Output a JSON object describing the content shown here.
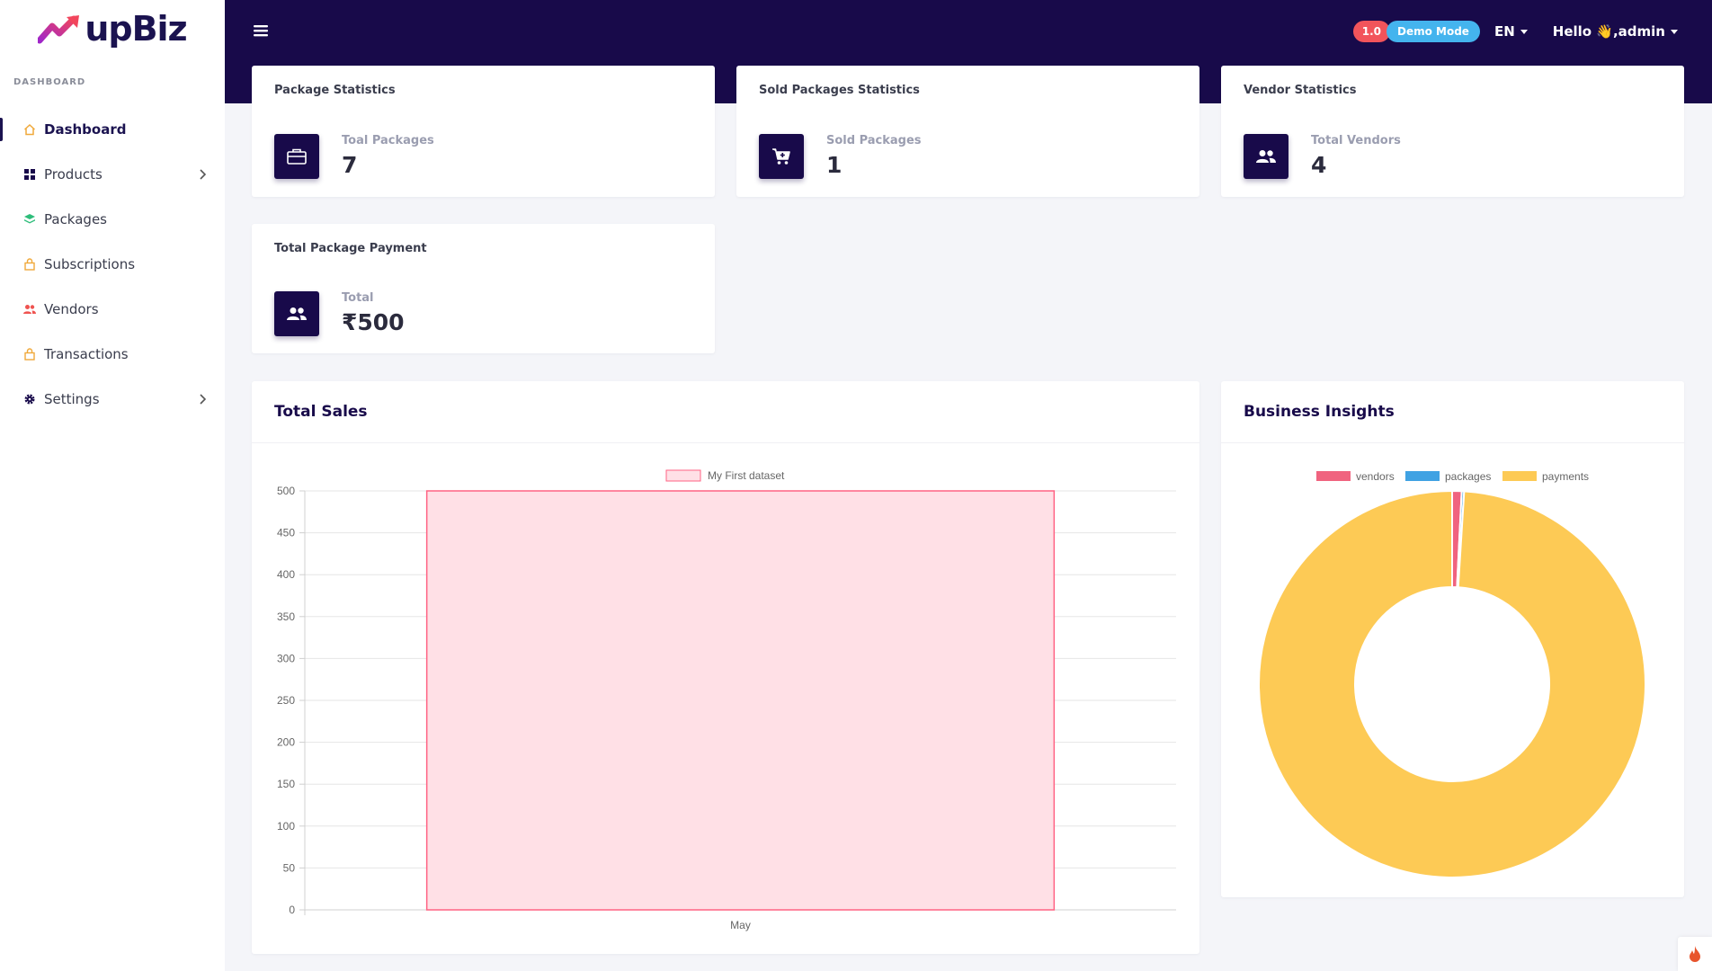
{
  "brand": {
    "name": "upBiz"
  },
  "sidebar": {
    "section_label": "DASHBOARD",
    "items": [
      {
        "label": "Dashboard",
        "icon": "home-icon",
        "active": true
      },
      {
        "label": "Products",
        "icon": "grid-icon",
        "has_children": true
      },
      {
        "label": "Packages",
        "icon": "layers-icon"
      },
      {
        "label": "Subscriptions",
        "icon": "lock-icon"
      },
      {
        "label": "Vendors",
        "icon": "users-icon"
      },
      {
        "label": "Transactions",
        "icon": "lock-icon"
      },
      {
        "label": "Settings",
        "icon": "gear-icon",
        "has_children": true
      }
    ]
  },
  "header": {
    "version_badge": "1.0",
    "mode_badge": "Demo Mode",
    "language": "EN",
    "greeting": "Hello 👋,admin"
  },
  "stats": {
    "packages": {
      "title": "Package Statistics",
      "label": "Toal Packages",
      "value": "7",
      "icon": "briefcase-icon"
    },
    "sold": {
      "title": "Sold Packages Statistics",
      "label": "Sold Packages",
      "value": "1",
      "icon": "cart-icon"
    },
    "vendors": {
      "title": "Vendor Statistics",
      "label": "Total Vendors",
      "value": "4",
      "icon": "users-icon"
    },
    "payment": {
      "title": "Total Package Payment",
      "label": "Total",
      "value": "₹500",
      "icon": "users-icon"
    }
  },
  "total_sales": {
    "title": "Total Sales"
  },
  "insights": {
    "title": "Business Insights"
  },
  "colors": {
    "navy": "#180a4a",
    "bar_fill": "#ffe0e6",
    "bar_stroke": "#ff6384",
    "vendors": "#f0637f",
    "packages": "#40a2e3",
    "payments": "#fdca55"
  },
  "chart_data": [
    {
      "type": "bar",
      "categories": [
        "May"
      ],
      "series": [
        {
          "name": "My First dataset",
          "values": [
            500
          ]
        }
      ],
      "ylim": [
        0,
        500
      ],
      "yticks": [
        0,
        50,
        100,
        150,
        200,
        250,
        300,
        350,
        400,
        450,
        500
      ],
      "legend": "top"
    },
    {
      "type": "pie",
      "labels": [
        "vendors",
        "packages",
        "payments"
      ],
      "values": [
        4,
        1,
        500
      ],
      "legend": "top"
    }
  ]
}
